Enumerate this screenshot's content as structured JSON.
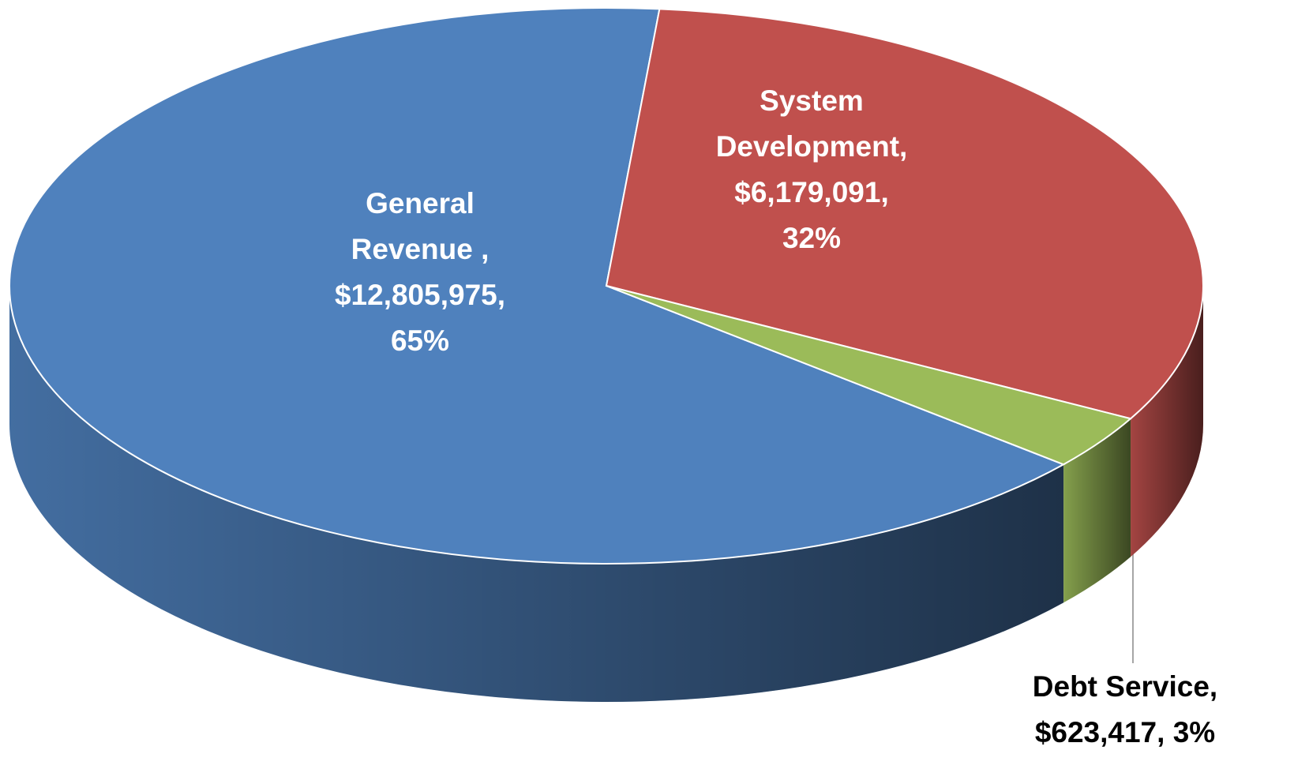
{
  "chart_data": {
    "type": "pie3d",
    "values": [
      12805975,
      6179091,
      623417
    ],
    "colors": [
      "#4f81bd",
      "#c0504d",
      "#9bbb59"
    ],
    "label_colors": [
      "#ffffff",
      "#ffffff",
      "#000000"
    ],
    "data_labels": [
      [
        "General",
        "Revenue ,",
        "$12,805,975,",
        "65%"
      ],
      [
        "System",
        "Development,",
        "$6,179,091,",
        "32%"
      ],
      [
        "Debt Service,",
        "$623,417, 3%"
      ]
    ]
  }
}
